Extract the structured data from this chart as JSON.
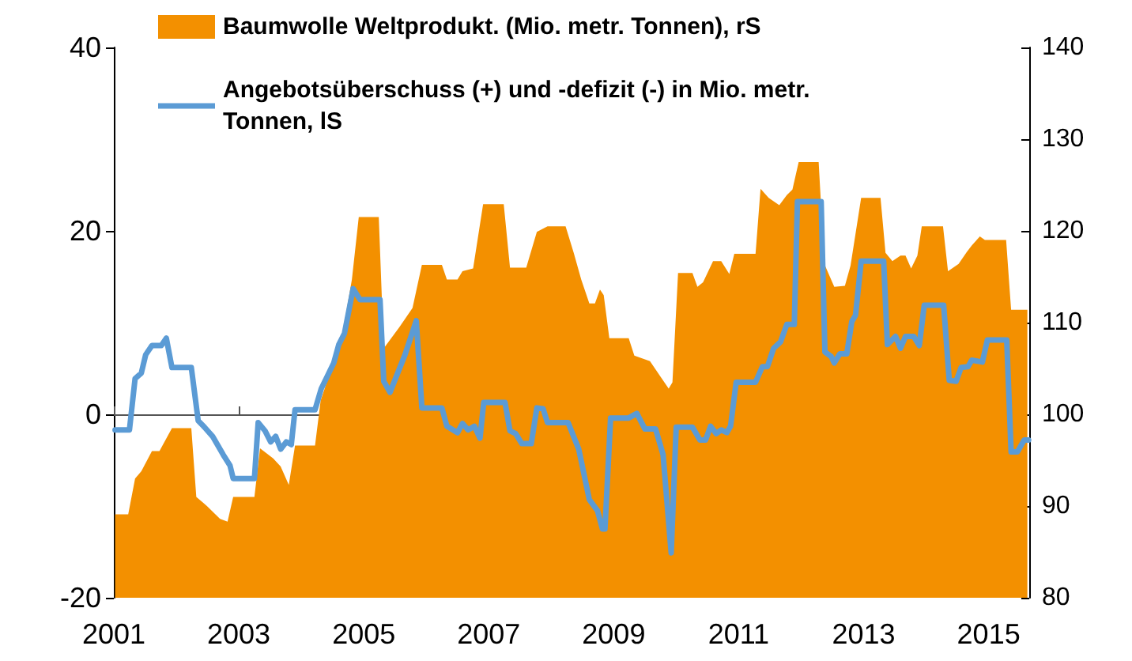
{
  "chart_data": {
    "type": "line",
    "xlim": [
      2001,
      2015.65
    ],
    "xticks": [
      2001,
      2003,
      2005,
      2007,
      2009,
      2011,
      2013,
      2015
    ],
    "ylim": [
      -20,
      40
    ],
    "yticks": [
      -20,
      0,
      20,
      40
    ],
    "y2lim": [
      80,
      140
    ],
    "y2ticks": [
      80,
      90,
      100,
      110,
      120,
      130,
      140
    ],
    "legend": "top",
    "marker": "none",
    "line_style": "solid",
    "series": [
      {
        "name": "Baumwolle Weltprodukt. (Mio. metr. Tonnen), rS",
        "type": "area",
        "axis": "y2",
        "color": "#f39000",
        "x": [
          2001.02,
          2001.23,
          2001.34,
          2001.44,
          2001.61,
          2001.73,
          2001.93,
          2002.24,
          2002.32,
          2002.49,
          2002.7,
          2002.82,
          2002.91,
          2003.25,
          2003.34,
          2003.55,
          2003.67,
          2003.8,
          2003.9,
          2004.22,
          2004.31,
          2004.65,
          2004.81,
          2004.92,
          2005.24,
          2005.32,
          2005.57,
          2005.78,
          2005.93,
          2006.25,
          2006.33,
          2006.5,
          2006.58,
          2006.75,
          2006.91,
          2007.24,
          2007.34,
          2007.6,
          2007.77,
          2007.94,
          2008.23,
          2008.36,
          2008.48,
          2008.61,
          2008.7,
          2008.78,
          2008.84,
          2008.93,
          2009.24,
          2009.33,
          2009.58,
          2009.75,
          2009.88,
          2009.94,
          2010.03,
          2010.26,
          2010.34,
          2010.43,
          2010.59,
          2010.72,
          2010.85,
          2010.93,
          2011.27,
          2011.35,
          2011.48,
          2011.65,
          2011.77,
          2011.86,
          2011.96,
          2012.28,
          2012.37,
          2012.53,
          2012.7,
          2012.79,
          2012.96,
          2013.27,
          2013.35,
          2013.46,
          2013.59,
          2013.67,
          2013.76,
          2013.86,
          2013.93,
          2014.27,
          2014.35,
          2014.52,
          2014.65,
          2014.73,
          2014.86,
          2014.94,
          2015.28,
          2015.36,
          2015.62
        ],
        "values": [
          89.1,
          89.1,
          93,
          93.8,
          96,
          96,
          98.5,
          98.5,
          91,
          90,
          88.6,
          88.3,
          91,
          91,
          96.3,
          95.2,
          94.3,
          92.3,
          96.6,
          96.6,
          101.5,
          108.4,
          114.7,
          121.5,
          121.5,
          107.2,
          109.5,
          111.6,
          116.3,
          116.3,
          114.7,
          114.7,
          115.6,
          115.9,
          122.9,
          122.9,
          116,
          116,
          119.9,
          120.5,
          120.5,
          117.6,
          114.7,
          112.1,
          112.1,
          113.6,
          113,
          108.3,
          108.3,
          106.4,
          105.8,
          104.1,
          102.8,
          103.5,
          115.4,
          115.4,
          113.9,
          114.4,
          116.7,
          116.7,
          115.3,
          117.5,
          117.5,
          124.6,
          123.6,
          122.8,
          123.9,
          124.5,
          127.5,
          127.5,
          116.4,
          113.9,
          114,
          116.2,
          123.6,
          123.6,
          117.6,
          116.7,
          117.3,
          117.3,
          115.9,
          117.3,
          120.5,
          120.5,
          115.6,
          116.4,
          117.7,
          118.4,
          119.4,
          119,
          119,
          111.4,
          111.4
        ]
      },
      {
        "name": "Angebotsüberschuss (+) und -defizit (-) in Mio. metr. Tonnen, lS",
        "type": "line",
        "color": "#5b9bd5",
        "x": [
          2001.02,
          2001.25,
          2001.34,
          2001.44,
          2001.51,
          2001.61,
          2001.76,
          2001.84,
          2001.93,
          2002.24,
          2002.35,
          2002.45,
          2002.58,
          2002.75,
          2002.86,
          2002.91,
          2003.25,
          2003.31,
          2003.42,
          2003.51,
          2003.59,
          2003.67,
          2003.76,
          2003.84,
          2003.9,
          2004.22,
          2004.32,
          2004.52,
          2004.6,
          2004.69,
          2004.83,
          2004.94,
          2005.26,
          2005.32,
          2005.42,
          2005.66,
          2005.84,
          2005.93,
          2006.25,
          2006.33,
          2006.5,
          2006.58,
          2006.67,
          2006.77,
          2006.86,
          2006.92,
          2007.26,
          2007.34,
          2007.43,
          2007.53,
          2007.68,
          2007.77,
          2007.87,
          2007.94,
          2008.27,
          2008.44,
          2008.61,
          2008.74,
          2008.82,
          2008.86,
          2008.95,
          2009.24,
          2009.37,
          2009.5,
          2009.67,
          2009.79,
          2009.92,
          2010,
          2010.26,
          2010.38,
          2010.47,
          2010.55,
          2010.64,
          2010.72,
          2010.81,
          2010.87,
          2010.96,
          2011.27,
          2011.38,
          2011.46,
          2011.56,
          2011.67,
          2011.77,
          2011.89,
          2011.94,
          2012.32,
          2012.38,
          2012.48,
          2012.53,
          2012.62,
          2012.73,
          2012.81,
          2012.87,
          2012.96,
          2013.32,
          2013.38,
          2013.51,
          2013.59,
          2013.67,
          2013.8,
          2013.89,
          2013.97,
          2014.28,
          2014.37,
          2014.48,
          2014.56,
          2014.67,
          2014.73,
          2014.9,
          2014.98,
          2015.29,
          2015.36,
          2015.46,
          2015.57,
          2015.64
        ],
        "values": [
          -1.7,
          -1.7,
          3.9,
          4.5,
          6.5,
          7.5,
          7.5,
          8.3,
          5.1,
          5.1,
          -0.7,
          -1.4,
          -2.4,
          -4.4,
          -5.6,
          -7,
          -7,
          -0.9,
          -1.8,
          -3,
          -2.4,
          -3.8,
          -3,
          -3.3,
          0.5,
          0.5,
          2.8,
          5.6,
          7.6,
          8.8,
          13.7,
          12.5,
          12.5,
          3.6,
          2.4,
          6.5,
          10.2,
          0.7,
          0.7,
          -1.3,
          -2,
          -1,
          -1.7,
          -1.3,
          -2.6,
          1.3,
          1.3,
          -1.8,
          -2.1,
          -3.2,
          -3.2,
          0.7,
          0.6,
          -0.9,
          -0.9,
          -3.8,
          -9.3,
          -10.5,
          -12.5,
          -12.5,
          -0.4,
          -0.4,
          0.1,
          -1.6,
          -1.6,
          -4.4,
          -15.1,
          -1.4,
          -1.4,
          -2.8,
          -2.8,
          -1.3,
          -2.1,
          -1.7,
          -2,
          -1.3,
          3.5,
          3.5,
          5.2,
          5.2,
          7.2,
          7.9,
          9.8,
          9.8,
          23.2,
          23.2,
          6.8,
          6.3,
          5.6,
          6.6,
          6.6,
          10.1,
          10.8,
          16.7,
          16.7,
          7.6,
          8.5,
          7.2,
          8.5,
          8.5,
          7.5,
          11.9,
          11.9,
          3.7,
          3.6,
          5.1,
          5.2,
          5.9,
          5.7,
          8.1,
          8.1,
          -4.1,
          -4.1,
          -2.8,
          -2.8
        ]
      }
    ]
  }
}
